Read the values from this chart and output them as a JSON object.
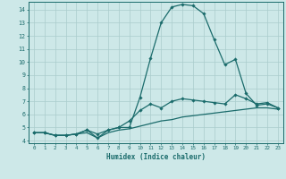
{
  "title": "",
  "xlabel": "Humidex (Indice chaleur)",
  "ylabel": "",
  "bg_color": "#cde8e8",
  "grid_color": "#aacccc",
  "line_color": "#1a6b6b",
  "xlim": [
    -0.5,
    23.5
  ],
  "ylim": [
    3.8,
    14.6
  ],
  "xticks": [
    0,
    1,
    2,
    3,
    4,
    5,
    6,
    7,
    8,
    9,
    10,
    11,
    12,
    13,
    14,
    15,
    16,
    17,
    18,
    19,
    20,
    21,
    22,
    23
  ],
  "yticks": [
    4,
    5,
    6,
    7,
    8,
    9,
    10,
    11,
    12,
    13,
    14
  ],
  "series": [
    {
      "x": [
        0,
        1,
        2,
        3,
        4,
        5,
        6,
        7,
        8,
        9,
        10,
        11,
        12,
        13,
        14,
        15,
        16,
        17,
        18,
        19,
        20,
        21,
        22,
        23
      ],
      "y": [
        4.6,
        4.6,
        4.4,
        4.4,
        4.5,
        4.8,
        4.5,
        4.8,
        5.0,
        5.0,
        7.3,
        10.3,
        13.0,
        14.2,
        14.4,
        14.3,
        13.7,
        11.7,
        9.8,
        10.2,
        7.6,
        6.7,
        6.8,
        6.5
      ],
      "marker": "D",
      "markersize": 1.8,
      "linewidth": 0.9
    },
    {
      "x": [
        0,
        1,
        2,
        3,
        4,
        5,
        6,
        7,
        8,
        9,
        10,
        11,
        12,
        13,
        14,
        15,
        16,
        17,
        18,
        19,
        20,
        21,
        22,
        23
      ],
      "y": [
        4.6,
        4.6,
        4.4,
        4.4,
        4.5,
        4.8,
        4.2,
        4.8,
        5.0,
        5.5,
        6.3,
        6.8,
        6.5,
        7.0,
        7.2,
        7.1,
        7.0,
        6.9,
        6.8,
        7.5,
        7.2,
        6.8,
        6.9,
        6.5
      ],
      "marker": "D",
      "markersize": 1.8,
      "linewidth": 0.9
    },
    {
      "x": [
        0,
        1,
        2,
        3,
        4,
        5,
        6,
        7,
        8,
        9,
        10,
        11,
        12,
        13,
        14,
        15,
        16,
        17,
        18,
        19,
        20,
        21,
        22,
        23
      ],
      "y": [
        4.6,
        4.6,
        4.4,
        4.4,
        4.5,
        4.6,
        4.2,
        4.6,
        4.8,
        4.9,
        5.1,
        5.3,
        5.5,
        5.6,
        5.8,
        5.9,
        6.0,
        6.1,
        6.2,
        6.3,
        6.4,
        6.5,
        6.5,
        6.4
      ],
      "marker": null,
      "markersize": 0,
      "linewidth": 0.9
    }
  ]
}
